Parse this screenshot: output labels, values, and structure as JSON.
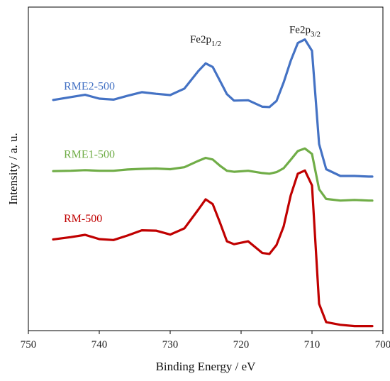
{
  "chart_data": {
    "type": "line",
    "title": "",
    "xlabel": "Binding Energy / eV",
    "ylabel": "Intensity / a. u.",
    "xlim": [
      750,
      700
    ],
    "x_reversed": true,
    "x_ticks": [
      750,
      740,
      730,
      720,
      710,
      700
    ],
    "x_tick_labels": [
      "750",
      "740",
      "730",
      "720",
      "710",
      "700"
    ],
    "ylim": [
      0,
      1
    ],
    "y_ticks_shown": false,
    "grid": false,
    "legend": "none",
    "annotations": [
      {
        "base": "Fe2p",
        "sub": "1/2",
        "x": 725,
        "y": 0.89
      },
      {
        "base": "Fe2p",
        "sub": "3/2",
        "x": 711,
        "y": 0.92
      }
    ],
    "series": [
      {
        "name": "RME2-500",
        "color": "#4472C4",
        "label_at": {
          "x": 745,
          "y": 0.745
        },
        "x": [
          746.5,
          744,
          742,
          740,
          738,
          736,
          734,
          732,
          730,
          728,
          726,
          725,
          724,
          723,
          722,
          721,
          719,
          717,
          716,
          715,
          714,
          713,
          712,
          711,
          710,
          709,
          708,
          706,
          704,
          702,
          701.5
        ],
        "y": [
          0.713,
          0.722,
          0.729,
          0.717,
          0.714,
          0.726,
          0.737,
          0.732,
          0.728,
          0.748,
          0.803,
          0.826,
          0.815,
          0.773,
          0.731,
          0.711,
          0.712,
          0.692,
          0.691,
          0.71,
          0.767,
          0.834,
          0.889,
          0.9,
          0.865,
          0.577,
          0.499,
          0.478,
          0.478,
          0.476,
          0.476
        ]
      },
      {
        "name": "RME1-500",
        "color": "#70AD47",
        "label_at": {
          "x": 745,
          "y": 0.534
        },
        "x": [
          746.5,
          744,
          742,
          740,
          738,
          736,
          734,
          732,
          730,
          728,
          726,
          725,
          724,
          723,
          722,
          721,
          719,
          717,
          716,
          715,
          714,
          713,
          712,
          711,
          710,
          709,
          708,
          706,
          704,
          702,
          701.5
        ],
        "y": [
          0.493,
          0.494,
          0.496,
          0.494,
          0.494,
          0.498,
          0.5,
          0.501,
          0.499,
          0.505,
          0.525,
          0.534,
          0.529,
          0.51,
          0.494,
          0.491,
          0.494,
          0.487,
          0.485,
          0.49,
          0.502,
          0.528,
          0.555,
          0.563,
          0.546,
          0.437,
          0.407,
          0.402,
          0.404,
          0.402,
          0.402
        ]
      },
      {
        "name": "RM-500",
        "color": "#C00000",
        "label_at": {
          "x": 745,
          "y": 0.336
        },
        "x": [
          746.5,
          744,
          742,
          740,
          738,
          736,
          734,
          732,
          730,
          728,
          726,
          725,
          724,
          723,
          722,
          721,
          719,
          717,
          716,
          715,
          714,
          713,
          712,
          711,
          710,
          709,
          708,
          706,
          704,
          702,
          701.5
        ],
        "y": [
          0.282,
          0.289,
          0.296,
          0.283,
          0.28,
          0.294,
          0.31,
          0.309,
          0.297,
          0.316,
          0.375,
          0.406,
          0.391,
          0.335,
          0.276,
          0.267,
          0.276,
          0.24,
          0.237,
          0.265,
          0.322,
          0.418,
          0.485,
          0.495,
          0.449,
          0.083,
          0.026,
          0.018,
          0.014,
          0.014,
          0.014
        ]
      }
    ]
  }
}
